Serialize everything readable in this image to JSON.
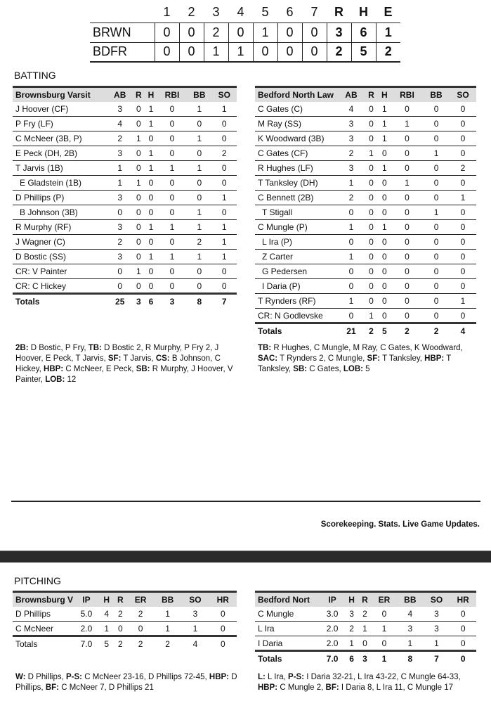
{
  "linescore": {
    "headers": [
      "",
      "1",
      "2",
      "3",
      "4",
      "5",
      "6",
      "7",
      "R",
      "H",
      "E"
    ],
    "rows": [
      [
        "BRWN",
        "0",
        "0",
        "2",
        "0",
        "1",
        "0",
        "0",
        "3",
        "6",
        "1"
      ],
      [
        "BDFR",
        "0",
        "0",
        "1",
        "1",
        "0",
        "0",
        "0",
        "2",
        "5",
        "2"
      ]
    ]
  },
  "batting": {
    "title": "BATTING",
    "home": {
      "headers": [
        "Brownsburg Varsit",
        "AB",
        "R",
        "H",
        "RBI",
        "BB",
        "SO"
      ],
      "rows": [
        [
          "J Hoover (CF)",
          "3",
          "0",
          "1",
          "0",
          "1",
          "1"
        ],
        [
          "P Fry (LF)",
          "4",
          "0",
          "1",
          "0",
          "0",
          "0"
        ],
        [
          "C McNeer (3B, P)",
          "2",
          "1",
          "0",
          "0",
          "1",
          "0"
        ],
        [
          "E Peck (DH, 2B)",
          "3",
          "0",
          "1",
          "0",
          "0",
          "2"
        ],
        [
          "T Jarvis (1B)",
          "1",
          "0",
          "1",
          "1",
          "1",
          "0"
        ],
        [
          "E Gladstein (1B)",
          "1",
          "1",
          "0",
          "0",
          "0",
          "0"
        ],
        [
          "D Phillips (P)",
          "3",
          "0",
          "0",
          "0",
          "0",
          "1"
        ],
        [
          "B Johnson (3B)",
          "0",
          "0",
          "0",
          "0",
          "1",
          "0"
        ],
        [
          "R Murphy (RF)",
          "3",
          "0",
          "1",
          "1",
          "1",
          "1"
        ],
        [
          "J Wagner (C)",
          "2",
          "0",
          "0",
          "0",
          "2",
          "1"
        ],
        [
          "D Bostic (SS)",
          "3",
          "0",
          "1",
          "1",
          "1",
          "1"
        ],
        [
          "CR: V Painter",
          "0",
          "1",
          "0",
          "0",
          "0",
          "0"
        ],
        [
          "CR: C Hickey",
          "0",
          "0",
          "0",
          "0",
          "0",
          "0"
        ]
      ],
      "indented": [
        5,
        7
      ],
      "totals": [
        "Totals",
        "25",
        "3",
        "6",
        "3",
        "8",
        "7"
      ],
      "notes": [
        [
          "2B:",
          " D Bostic, P Fry, "
        ],
        [
          "TB:",
          " D Bostic 2, R Murphy, P Fry 2, J Hoover, E Peck, T Jarvis, "
        ],
        [
          "SF:",
          " T Jarvis, "
        ],
        [
          "CS:",
          " B Johnson, C Hickey, "
        ],
        [
          "HBP:",
          " C McNeer, E Peck, "
        ],
        [
          "SB:",
          " R Murphy, J Hoover, V Painter, "
        ],
        [
          "LOB:",
          " 12"
        ]
      ]
    },
    "away": {
      "headers": [
        "Bedford North Law",
        "AB",
        "R",
        "H",
        "RBI",
        "BB",
        "SO"
      ],
      "rows": [
        [
          "C Gates (C)",
          "4",
          "0",
          "1",
          "0",
          "0",
          "0"
        ],
        [
          "M Ray (SS)",
          "3",
          "0",
          "1",
          "1",
          "0",
          "0"
        ],
        [
          "K Woodward (3B)",
          "3",
          "0",
          "1",
          "0",
          "0",
          "0"
        ],
        [
          "C Gates (CF)",
          "2",
          "1",
          "0",
          "0",
          "1",
          "0"
        ],
        [
          "R Hughes (LF)",
          "3",
          "0",
          "1",
          "0",
          "0",
          "2"
        ],
        [
          "T Tanksley (DH)",
          "1",
          "0",
          "0",
          "1",
          "0",
          "0"
        ],
        [
          "C Bennett (2B)",
          "2",
          "0",
          "0",
          "0",
          "0",
          "1"
        ],
        [
          "T Stigall",
          "0",
          "0",
          "0",
          "0",
          "1",
          "0"
        ],
        [
          "C Mungle (P)",
          "1",
          "0",
          "1",
          "0",
          "0",
          "0"
        ],
        [
          "L Ira (P)",
          "0",
          "0",
          "0",
          "0",
          "0",
          "0"
        ],
        [
          "Z Carter",
          "1",
          "0",
          "0",
          "0",
          "0",
          "0"
        ],
        [
          "G Pedersen",
          "0",
          "0",
          "0",
          "0",
          "0",
          "0"
        ],
        [
          "I Daria (P)",
          "0",
          "0",
          "0",
          "0",
          "0",
          "0"
        ],
        [
          "T Rynders (RF)",
          "1",
          "0",
          "0",
          "0",
          "0",
          "1"
        ],
        [
          "CR: N Godlevske",
          "0",
          "1",
          "0",
          "0",
          "0",
          "0"
        ]
      ],
      "indented": [
        7,
        9,
        10,
        11,
        12
      ],
      "totals": [
        "Totals",
        "21",
        "2",
        "5",
        "2",
        "2",
        "4"
      ],
      "notes": [
        [
          "TB:",
          " R Hughes, C Mungle, M Ray, C Gates, K Woodward, "
        ],
        [
          "SAC:",
          " T Rynders 2, C Mungle, "
        ],
        [
          "SF:",
          " T Tanksley, "
        ],
        [
          "HBP:",
          " T Tanksley, "
        ],
        [
          "SB:",
          " C Gates, "
        ],
        [
          "LOB:",
          " 5"
        ]
      ]
    }
  },
  "footer": {
    "tagline": "Scorekeeping. Stats. Live Game Updates."
  },
  "pitching": {
    "title": "PITCHING",
    "home": {
      "headers": [
        "Brownsburg V",
        "IP",
        "H",
        "R",
        "ER",
        "BB",
        "SO",
        "HR"
      ],
      "rows": [
        [
          "D Phillips",
          "5.0",
          "4",
          "2",
          "2",
          "1",
          "3",
          "0"
        ],
        [
          "C McNeer",
          "2.0",
          "1",
          "0",
          "0",
          "1",
          "1",
          "0"
        ]
      ],
      "totals": [
        "Totals",
        "7.0",
        "5",
        "2",
        "2",
        "2",
        "4",
        "0"
      ],
      "notes": [
        [
          "W:",
          " D Phillips, "
        ],
        [
          "P-S:",
          " C McNeer 23-16, D Phillips 72-45, "
        ],
        [
          "HBP:",
          " D Phillips, "
        ],
        [
          "BF:",
          " C McNeer 7, D Phillips 21"
        ]
      ]
    },
    "away": {
      "headers": [
        "Bedford Nort",
        "IP",
        "H",
        "R",
        "ER",
        "BB",
        "SO",
        "HR"
      ],
      "rows": [
        [
          "C Mungle",
          "3.0",
          "3",
          "2",
          "0",
          "4",
          "3",
          "0"
        ],
        [
          "L Ira",
          "2.0",
          "2",
          "1",
          "1",
          "3",
          "3",
          "0"
        ],
        [
          "I Daria",
          "2.0",
          "1",
          "0",
          "0",
          "1",
          "1",
          "0"
        ]
      ],
      "totals": [
        "Totals",
        "7.0",
        "6",
        "3",
        "1",
        "8",
        "7",
        "0"
      ],
      "notes": [
        [
          "L:",
          " L Ira, "
        ],
        [
          "P-S:",
          " I Daria 32-21, L Ira 43-22, C Mungle 64-33, "
        ],
        [
          "HBP:",
          " C Mungle 2, "
        ],
        [
          "BF:",
          " I Daria 8, L Ira 11, C Mungle 17"
        ]
      ]
    }
  }
}
